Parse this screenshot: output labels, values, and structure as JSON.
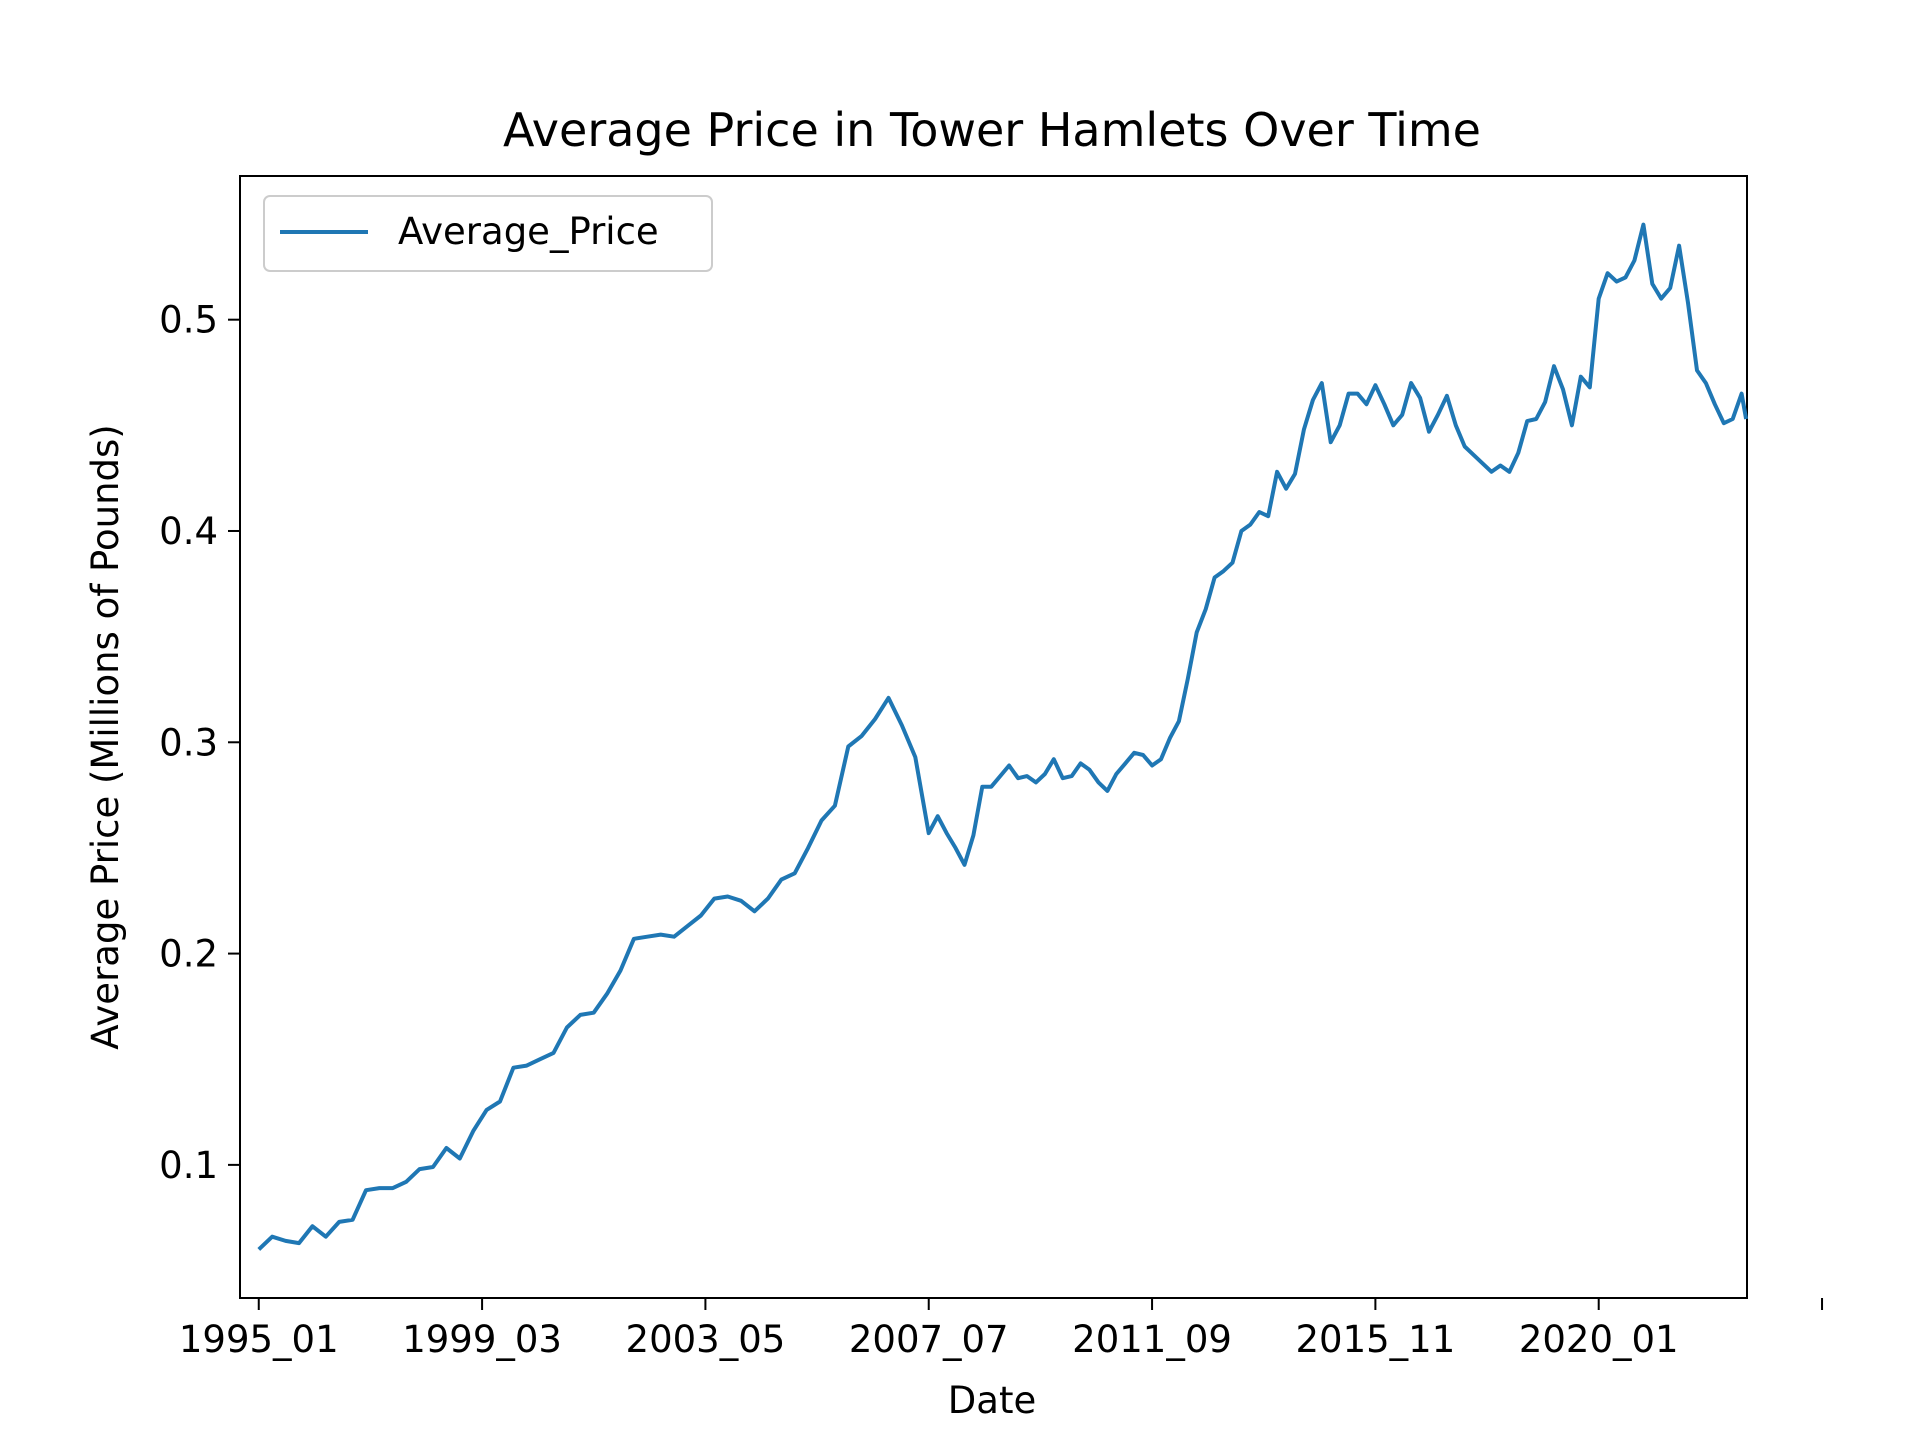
{
  "chart_data": {
    "type": "line",
    "title": "Average Price in Tower Hamlets Over Time",
    "xlabel": "Date",
    "ylabel": "Average Price (Millions of Pounds)",
    "x_tick_labels": [
      "1995_01",
      "1999_03",
      "2003_05",
      "2007_07",
      "2011_09",
      "2015_11",
      "2020_01",
      ""
    ],
    "y_tick_labels": [
      "0.1",
      "0.2",
      "0.3",
      "0.4",
      "0.5"
    ],
    "y_ticks": [
      0.1,
      0.2,
      0.3,
      0.4,
      0.5
    ],
    "ylim": [
      0.037,
      0.568
    ],
    "xlim": [
      -4.2,
      333.2
    ],
    "legend_position": "upper-left",
    "grid": false,
    "series": [
      {
        "name": "Average_Price",
        "color": "#1f77b4",
        "x": [
          0,
          3,
          6,
          9,
          12,
          15,
          18,
          21,
          24,
          27,
          30,
          33,
          36,
          39,
          42,
          45,
          48,
          51,
          54,
          57,
          60,
          63,
          66,
          69,
          72,
          75,
          78,
          81,
          84,
          87,
          90,
          93,
          96,
          99,
          102,
          105,
          108,
          111,
          114,
          117,
          120,
          123,
          126,
          129,
          132,
          135,
          138,
          141,
          144,
          147,
          150,
          152,
          154,
          156,
          158,
          160,
          162,
          164,
          166,
          168,
          170,
          172,
          174,
          176,
          178,
          180,
          182,
          184,
          186,
          188,
          190,
          192,
          194,
          196,
          198,
          200,
          202,
          204,
          206,
          208,
          210,
          212,
          214,
          216,
          218,
          220,
          222,
          224,
          226,
          228,
          230,
          232,
          234,
          236,
          238,
          240,
          242,
          244,
          246,
          248,
          250,
          252,
          254,
          256,
          258,
          260,
          262,
          264,
          266,
          268,
          270,
          272,
          274,
          276,
          278,
          280,
          282,
          284,
          286,
          288,
          290,
          292,
          294,
          296,
          298,
          300,
          302,
          304,
          306,
          308,
          310,
          312,
          314,
          316,
          318,
          320,
          322,
          324,
          326,
          328,
          330,
          332,
          333
        ],
        "y": [
          0.06,
          0.066,
          0.064,
          0.063,
          0.071,
          0.066,
          0.073,
          0.074,
          0.088,
          0.089,
          0.089,
          0.092,
          0.098,
          0.099,
          0.108,
          0.103,
          0.116,
          0.126,
          0.13,
          0.146,
          0.147,
          0.15,
          0.153,
          0.165,
          0.171,
          0.172,
          0.181,
          0.192,
          0.207,
          0.208,
          0.209,
          0.208,
          0.213,
          0.218,
          0.226,
          0.227,
          0.225,
          0.22,
          0.226,
          0.235,
          0.238,
          0.25,
          0.263,
          0.27,
          0.298,
          0.303,
          0.311,
          0.321,
          0.308,
          0.293,
          0.257,
          0.265,
          0.257,
          0.25,
          0.242,
          0.256,
          0.279,
          0.279,
          0.284,
          0.289,
          0.283,
          0.284,
          0.281,
          0.285,
          0.292,
          0.283,
          0.284,
          0.29,
          0.287,
          0.281,
          0.277,
          0.285,
          0.29,
          0.295,
          0.294,
          0.289,
          0.292,
          0.302,
          0.31,
          0.33,
          0.352,
          0.363,
          0.378,
          0.381,
          0.385,
          0.4,
          0.403,
          0.409,
          0.407,
          0.428,
          0.42,
          0.427,
          0.448,
          0.462,
          0.47,
          0.442,
          0.45,
          0.465,
          0.465,
          0.46,
          0.469,
          0.46,
          0.45,
          0.455,
          0.47,
          0.463,
          0.447,
          0.455,
          0.464,
          0.45,
          0.44,
          0.436,
          0.432,
          0.428,
          0.431,
          0.428,
          0.437,
          0.452,
          0.453,
          0.461,
          0.478,
          0.467,
          0.45,
          0.473,
          0.468,
          0.51,
          0.522,
          0.518,
          0.52,
          0.528,
          0.545,
          0.517,
          0.51,
          0.515,
          0.535,
          0.508,
          0.476,
          0.47,
          0.46,
          0.451,
          0.453,
          0.465,
          0.453
        ]
      }
    ]
  }
}
